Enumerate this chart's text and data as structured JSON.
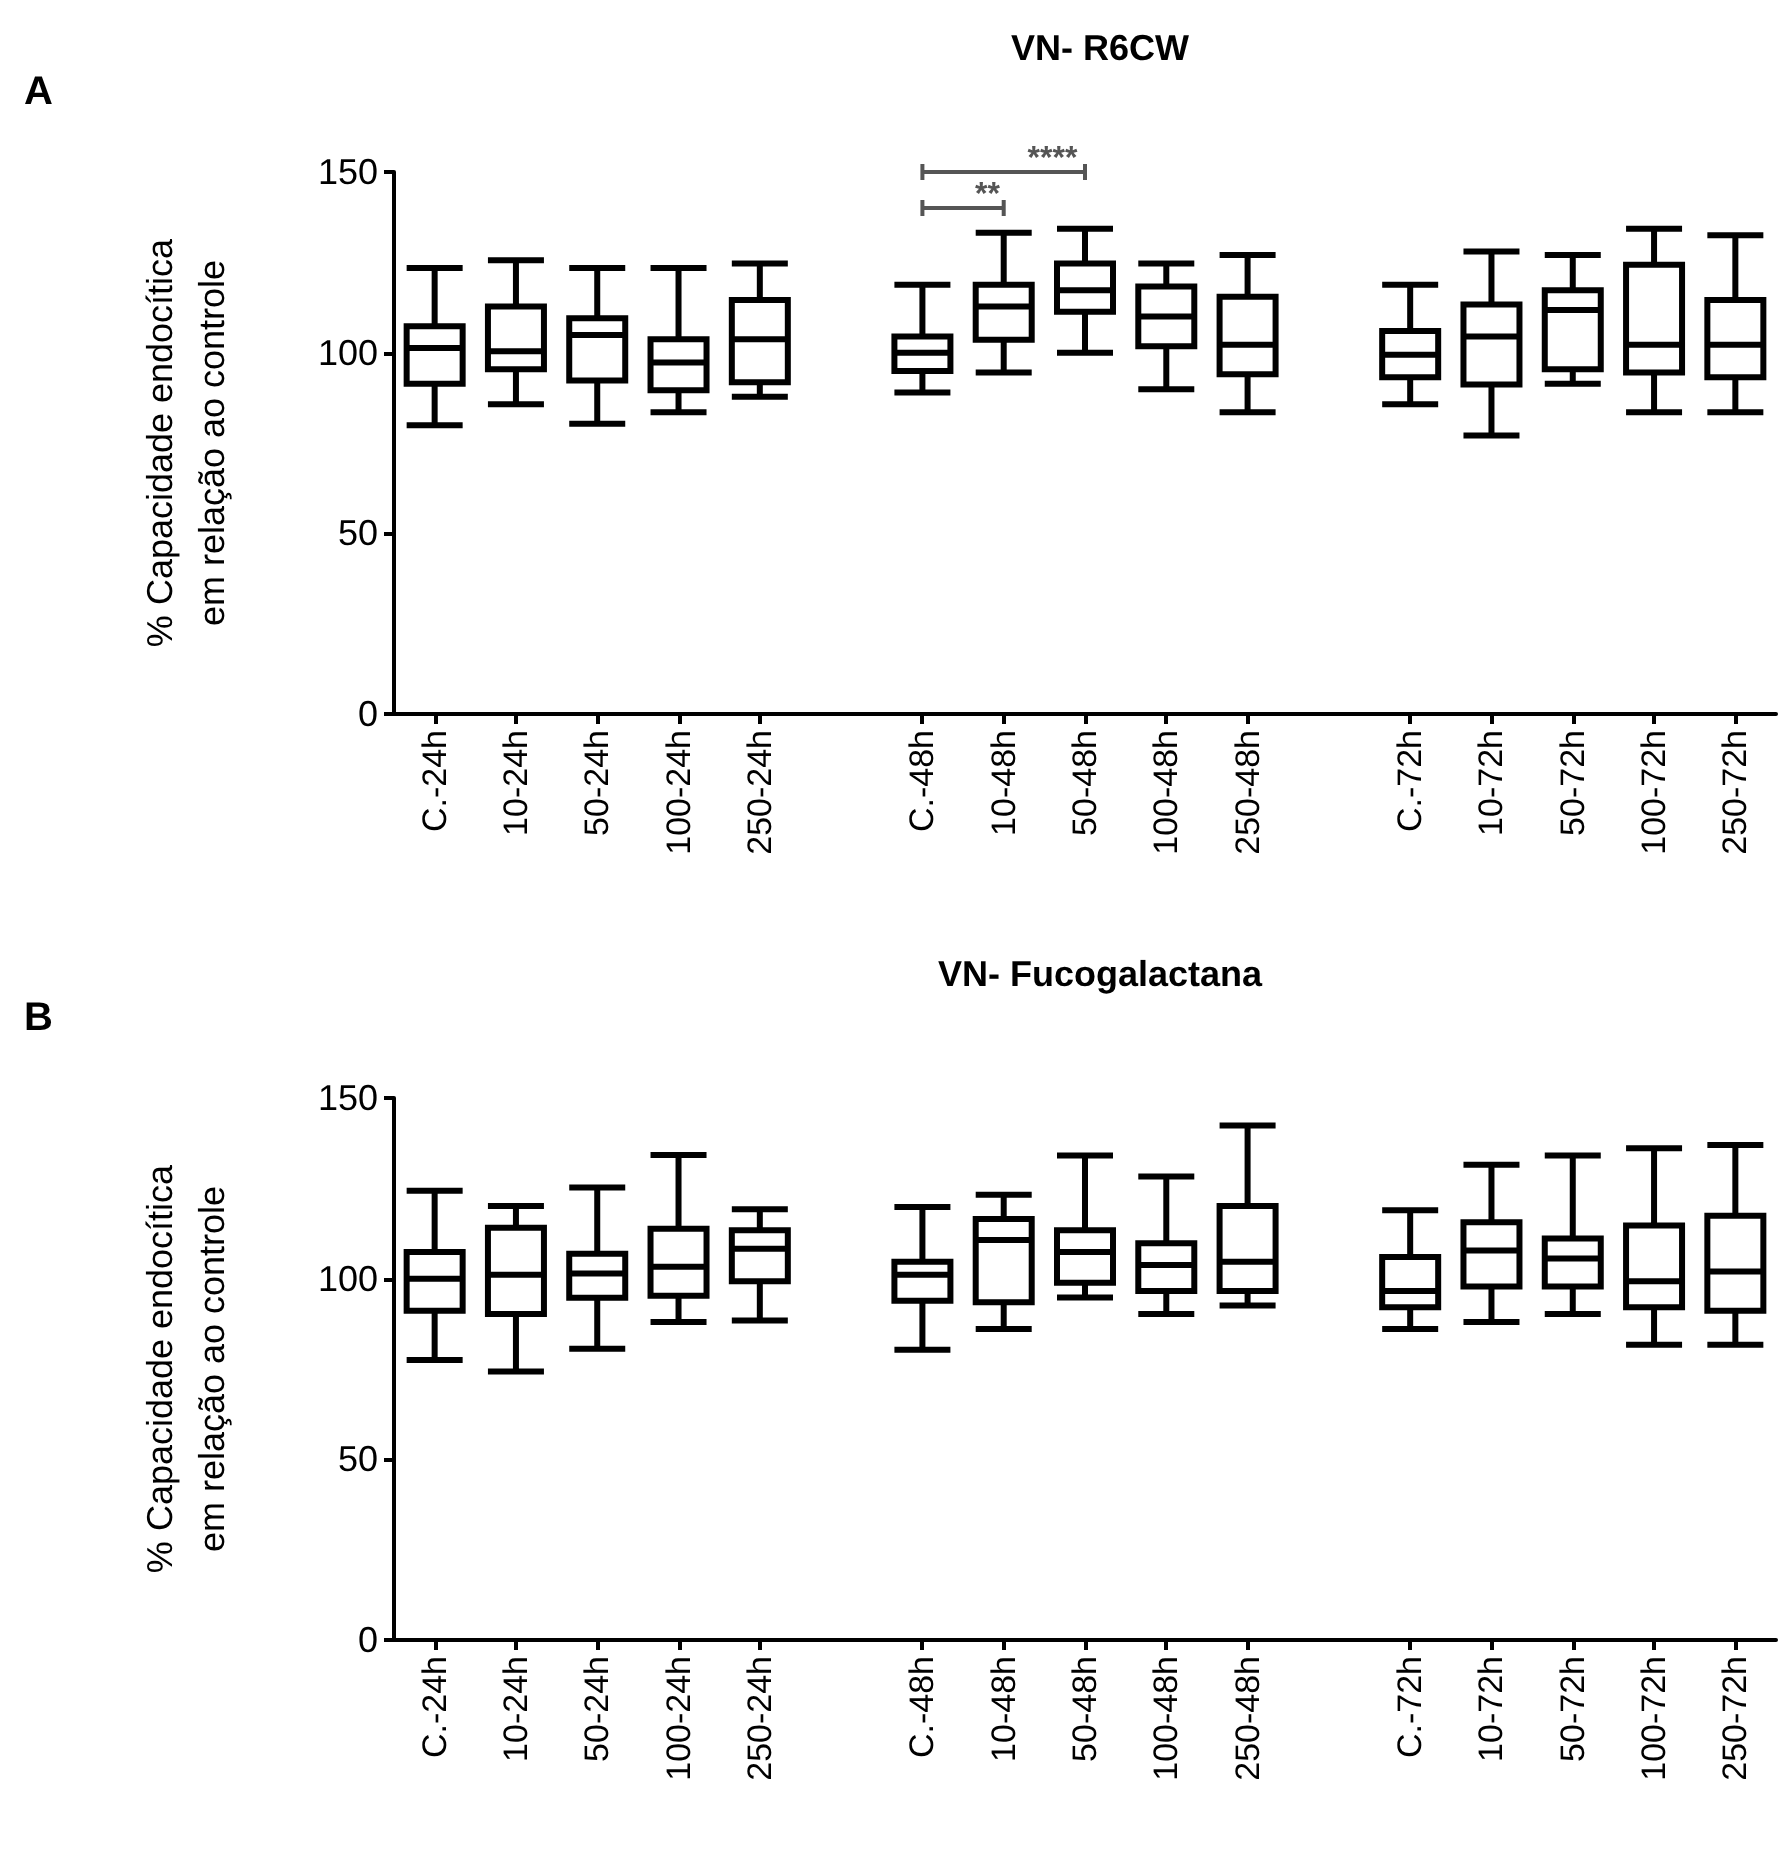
{
  "chart_data": [
    {
      "type": "box",
      "title": "VN- R6CW",
      "ylabel": "% Capacidade endocítica\nem relação ao controle",
      "categories": [
        "C.-24h",
        "10-24h",
        "50-24h",
        "100-24h",
        "250-24h",
        null,
        "C.-48h",
        "10-48h",
        "50-48h",
        "100-48h",
        "250-48h",
        null,
        "C.-72h",
        "10-72h",
        "50-72h",
        "100-72h",
        "250-72h"
      ],
      "ylim": [
        0,
        150
      ],
      "yticks": [
        0,
        50,
        100,
        150
      ],
      "series": [
        {
          "color": "#000000",
          "boxes": [
            {
              "low": 79.9,
              "q1": 91.4,
              "median": 101.3,
              "q3": 107.3,
              "high": 123.4
            },
            {
              "low": 85.7,
              "q1": 95.4,
              "median": 100.4,
              "q3": 112.8,
              "high": 125.6
            },
            {
              "low": 80.3,
              "q1": 92.3,
              "median": 104.9,
              "q3": 109.5,
              "high": 123.4
            },
            {
              "low": 83.5,
              "q1": 89.6,
              "median": 97.3,
              "q3": 103.7,
              "high": 123.4
            },
            {
              "low": 87.8,
              "q1": 91.8,
              "median": 103.7,
              "q3": 114.6,
              "high": 124.7
            },
            null,
            {
              "low": 89,
              "q1": 94.9,
              "median": 100,
              "q3": 104.5,
              "high": 118.8
            },
            {
              "low": 94.5,
              "q1": 103.6,
              "median": 112.8,
              "q3": 118.8,
              "high": 133.2
            },
            {
              "low": 100,
              "q1": 111.3,
              "median": 117.3,
              "q3": 124.7,
              "high": 134.3
            },
            {
              "low": 89.9,
              "q1": 101.8,
              "median": 110,
              "q3": 118.3,
              "high": 124.7
            },
            {
              "low": 83.5,
              "q1": 94,
              "median": 102.2,
              "q3": 115.5,
              "high": 127
            },
            null,
            {
              "low": 85.7,
              "q1": 93.2,
              "median": 99.4,
              "q3": 106,
              "high": 118.8
            },
            {
              "low": 77.1,
              "q1": 91.2,
              "median": 104.5,
              "q3": 113.3,
              "high": 128
            },
            {
              "low": 91.4,
              "q1": 95.4,
              "median": 111.8,
              "q3": 117.3,
              "high": 127
            },
            {
              "low": 83.5,
              "q1": 94.5,
              "median": 102.2,
              "q3": 124.3,
              "high": 134.3
            },
            {
              "low": 83.5,
              "q1": 93.2,
              "median": 102.2,
              "q3": 114.6,
              "high": 132.5
            }
          ]
        }
      ],
      "annotations": [
        "A",
        "**",
        "****"
      ]
    },
    {
      "type": "box",
      "title": "VN- Fucogalactana",
      "ylabel": "% Capacidade endocítica\nem relação ao controle",
      "categories": [
        "C.-24h",
        "10-24h",
        "50-24h",
        "100-24h",
        "250-24h",
        null,
        "C.-48h",
        "10-48h",
        "50-48h",
        "100-48h",
        "250-48h",
        null,
        "C.-72h",
        "10-72h",
        "50-72h",
        "100-72h",
        "250-72h"
      ],
      "ylim": [
        0,
        150
      ],
      "yticks": [
        0,
        50,
        100,
        150
      ],
      "series": [
        {
          "color": "#000000",
          "boxes": [
            {
              "low": 77.5,
              "q1": 91.1,
              "median": 100,
              "q3": 107.4,
              "high": 124.3
            },
            {
              "low": 74.3,
              "q1": 90.2,
              "median": 101.1,
              "q3": 114.1,
              "high": 120.1
            },
            {
              "low": 80.6,
              "q1": 94.7,
              "median": 101.4,
              "q3": 106.9,
              "high": 125.2
            },
            {
              "low": 88,
              "q1": 95.3,
              "median": 103.3,
              "q3": 113.8,
              "high": 134.2
            },
            {
              "low": 88.4,
              "q1": 99.3,
              "median": 108.3,
              "q3": 113.4,
              "high": 119.2
            },
            null,
            {
              "low": 80.3,
              "q1": 93.9,
              "median": 101.1,
              "q3": 104.7,
              "high": 119.8
            },
            {
              "low": 86.1,
              "q1": 93.5,
              "median": 110.7,
              "q3": 116.5,
              "high": 123.2
            },
            {
              "low": 94.8,
              "q1": 98.9,
              "median": 107.4,
              "q3": 113.4,
              "high": 134.1
            },
            {
              "low": 90.2,
              "q1": 96.6,
              "median": 103.8,
              "q3": 109.8,
              "high": 128.3
            },
            {
              "low": 92.6,
              "q1": 96.6,
              "median": 104.7,
              "q3": 120.1,
              "high": 142.4
            },
            null,
            {
              "low": 86.1,
              "q1": 92.1,
              "median": 96.6,
              "q3": 106,
              "high": 118.9
            },
            {
              "low": 88,
              "q1": 97.8,
              "median": 107.8,
              "q3": 115.6,
              "high": 131.5
            },
            {
              "low": 90.2,
              "q1": 97.8,
              "median": 105.6,
              "q3": 111.1,
              "high": 134.1
            },
            {
              "low": 81.7,
              "q1": 92.1,
              "median": 99.3,
              "q3": 114.7,
              "high": 136.1
            },
            {
              "low": 81.7,
              "q1": 91.1,
              "median": 102,
              "q3": 117.4,
              "high": 137
            }
          ]
        }
      ],
      "annotations": [
        "B"
      ]
    }
  ]
}
